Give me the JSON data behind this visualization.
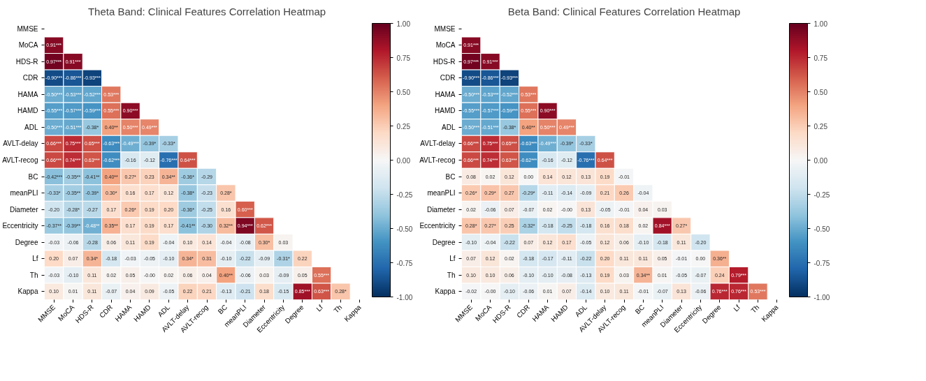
{
  "chart_data": [
    {
      "type": "heatmap",
      "title": "Theta Band: Clinical Features Correlation Heatmap",
      "categories": [
        "MMSE",
        "MoCA",
        "HDS-R",
        "CDR",
        "HAMA",
        "HAMD",
        "ADL",
        "AVLT-delay",
        "AVLT-recog",
        "BC",
        "meanPLI",
        "Diameter",
        "Eccentricity",
        "Degree",
        "Lf",
        "Th",
        "Kappa"
      ],
      "y_categories": [
        "MMSE",
        "MoCA",
        "HDS-R",
        "CDR",
        "HAMA",
        "HAMD",
        "ADL",
        "AVLT-delay",
        "AVLT-recog",
        "BC",
        "meanPLI",
        "Diameter",
        "Eccentricity",
        "Degree",
        "Lf",
        "Th",
        "Kappa"
      ],
      "cells": [
        [
          null,
          null,
          null,
          null,
          null,
          null,
          null,
          null,
          null,
          null,
          null,
          null,
          null,
          null,
          null,
          null,
          null
        ],
        [
          0.91,
          null,
          null,
          null,
          null,
          null,
          null,
          null,
          null,
          null,
          null,
          null,
          null,
          null,
          null,
          null,
          null
        ],
        [
          0.97,
          0.91,
          null,
          null,
          null,
          null,
          null,
          null,
          null,
          null,
          null,
          null,
          null,
          null,
          null,
          null,
          null
        ],
        [
          -0.9,
          -0.86,
          -0.93,
          null,
          null,
          null,
          null,
          null,
          null,
          null,
          null,
          null,
          null,
          null,
          null,
          null,
          null
        ],
        [
          -0.5,
          -0.53,
          -0.52,
          0.53,
          null,
          null,
          null,
          null,
          null,
          null,
          null,
          null,
          null,
          null,
          null,
          null,
          null
        ],
        [
          -0.55,
          -0.57,
          -0.59,
          0.55,
          0.9,
          null,
          null,
          null,
          null,
          null,
          null,
          null,
          null,
          null,
          null,
          null,
          null
        ],
        [
          -0.5,
          -0.51,
          -0.38,
          0.4,
          0.5,
          0.49,
          null,
          null,
          null,
          null,
          null,
          null,
          null,
          null,
          null,
          null,
          null
        ],
        [
          0.66,
          0.75,
          0.65,
          -0.63,
          -0.49,
          -0.39,
          -0.33,
          null,
          null,
          null,
          null,
          null,
          null,
          null,
          null,
          null,
          null
        ],
        [
          0.66,
          0.74,
          0.63,
          -0.62,
          -0.16,
          -0.12,
          -0.76,
          0.64,
          null,
          null,
          null,
          null,
          null,
          null,
          null,
          null,
          null
        ],
        [
          -0.42,
          -0.35,
          -0.41,
          0.4,
          0.27,
          0.23,
          0.34,
          -0.36,
          -0.29,
          null,
          null,
          null,
          null,
          null,
          null,
          null,
          null
        ],
        [
          -0.33,
          -0.35,
          -0.39,
          0.3,
          0.16,
          0.17,
          0.12,
          -0.38,
          -0.23,
          0.28,
          null,
          null,
          null,
          null,
          null,
          null,
          null
        ],
        [
          -0.2,
          -0.28,
          -0.27,
          0.17,
          0.26,
          0.19,
          0.2,
          -0.36,
          -0.25,
          0.16,
          0.6,
          null,
          null,
          null,
          null,
          null,
          null
        ],
        [
          -0.37,
          -0.39,
          -0.48,
          0.35,
          0.17,
          0.19,
          0.17,
          -0.41,
          -0.3,
          0.32,
          0.94,
          0.62,
          null,
          null,
          null,
          null,
          null
        ],
        [
          -0.03,
          -0.06,
          -0.28,
          0.06,
          0.11,
          0.19,
          -0.04,
          0.1,
          0.14,
          -0.04,
          -0.08,
          0.3,
          0.03,
          null,
          null,
          null,
          null
        ],
        [
          0.2,
          0.07,
          0.34,
          -0.18,
          -0.03,
          -0.05,
          -0.1,
          0.34,
          0.31,
          -0.1,
          -0.22,
          -0.09,
          -0.31,
          0.22,
          null,
          null,
          null
        ],
        [
          -0.03,
          -0.1,
          0.11,
          0.02,
          0.05,
          0,
          0.02,
          0.06,
          0.04,
          0.4,
          -0.06,
          0.03,
          -0.09,
          0.05,
          0.55,
          null,
          null
        ],
        [
          0.1,
          0.01,
          0.11,
          -0.07,
          0.04,
          0.09,
          -0.05,
          0.22,
          0.21,
          -0.13,
          -0.21,
          0.18,
          -0.15,
          0.85,
          0.63,
          0.28,
          null
        ]
      ],
      "cell_labels": [
        [
          null,
          null,
          null,
          null,
          null,
          null,
          null,
          null,
          null,
          null,
          null,
          null,
          null,
          null,
          null,
          null,
          null
        ],
        [
          "0.91***",
          null,
          null,
          null,
          null,
          null,
          null,
          null,
          null,
          null,
          null,
          null,
          null,
          null,
          null,
          null,
          null
        ],
        [
          "0.97***",
          "0.91***",
          null,
          null,
          null,
          null,
          null,
          null,
          null,
          null,
          null,
          null,
          null,
          null,
          null,
          null,
          null
        ],
        [
          "-0.90***",
          "-0.86***",
          "-0.93***",
          null,
          null,
          null,
          null,
          null,
          null,
          null,
          null,
          null,
          null,
          null,
          null,
          null,
          null
        ],
        [
          "-0.50***",
          "-0.53***",
          "-0.52***",
          "0.53***",
          null,
          null,
          null,
          null,
          null,
          null,
          null,
          null,
          null,
          null,
          null,
          null,
          null
        ],
        [
          "-0.55***",
          "-0.57***",
          "-0.59***",
          "0.55***",
          "0.90***",
          null,
          null,
          null,
          null,
          null,
          null,
          null,
          null,
          null,
          null,
          null,
          null
        ],
        [
          "-0.50***",
          "-0.51***",
          "-0.38*",
          "0.40**",
          "0.50***",
          "0.49***",
          null,
          null,
          null,
          null,
          null,
          null,
          null,
          null,
          null,
          null,
          null
        ],
        [
          "0.66***",
          "0.75***",
          "0.65***",
          "-0.63***",
          "-0.49***",
          "-0.39*",
          "-0.33*",
          null,
          null,
          null,
          null,
          null,
          null,
          null,
          null,
          null,
          null
        ],
        [
          "0.66***",
          "0.74***",
          "0.63***",
          "-0.62***",
          "-0.16",
          "-0.12",
          "-0.76***",
          "0.64***",
          null,
          null,
          null,
          null,
          null,
          null,
          null,
          null,
          null
        ],
        [
          "-0.42***",
          "-0.35**",
          "-0.41**",
          "0.40**",
          "0.27*",
          "0.23",
          "0.34**",
          "-0.36*",
          "-0.29",
          null,
          null,
          null,
          null,
          null,
          null,
          null,
          null
        ],
        [
          "-0.33*",
          "-0.35**",
          "-0.39*",
          "0.30*",
          "0.16",
          "0.17",
          "0.12",
          "-0.38*",
          "-0.23",
          "0.28*",
          null,
          null,
          null,
          null,
          null,
          null,
          null
        ],
        [
          "-0.20",
          "-0.28*",
          "-0.27",
          "0.17",
          "0.26*",
          "0.19",
          "0.20",
          "-0.36*",
          "-0.25",
          "0.16",
          "0.60***",
          null,
          null,
          null,
          null,
          null,
          null
        ],
        [
          "-0.37**",
          "-0.39**",
          "-0.48**",
          "0.35**",
          "0.17",
          "0.19",
          "0.17",
          "-0.41**",
          "-0.30",
          "0.32**",
          "0.94***",
          "0.62***",
          null,
          null,
          null,
          null,
          null
        ],
        [
          "-0.03",
          "-0.06",
          "-0.28",
          "0.06",
          "0.11",
          "0.19",
          "-0.04",
          "0.10",
          "0.14",
          "-0.04",
          "-0.08",
          "0.30*",
          "0.03",
          null,
          null,
          null,
          null
        ],
        [
          "0.20",
          "0.07",
          "0.34*",
          "-0.18",
          "-0.03",
          "-0.05",
          "-0.10",
          "0.34*",
          "0.31",
          "-0.10",
          "-0.22",
          "-0.09",
          "-0.31*",
          "0.22",
          null,
          null,
          null
        ],
        [
          "-0.03",
          "-0.10",
          "0.11",
          "0.02",
          "0.05",
          "-0.00",
          "0.02",
          "0.06",
          "0.04",
          "0.40**",
          "-0.06",
          "0.03",
          "-0.09",
          "0.05",
          "0.55***",
          null,
          null
        ],
        [
          "0.10",
          "0.01",
          "0.11",
          "-0.07",
          "0.04",
          "0.09",
          "-0.05",
          "0.22",
          "0.21",
          "-0.13",
          "-0.21",
          "0.18",
          "-0.15",
          "0.85***",
          "0.63***",
          "0.28*",
          null
        ]
      ],
      "clim": [
        -1,
        1
      ],
      "cticks": [
        {
          "value": -1,
          "label": "-1.00"
        },
        {
          "value": -0.75,
          "label": "-0.75"
        },
        {
          "value": -0.5,
          "label": "-0.50"
        },
        {
          "value": -0.25,
          "label": "-0.25"
        },
        {
          "value": 0,
          "label": "0.00"
        },
        {
          "value": 0.25,
          "label": "0.25"
        },
        {
          "value": 0.5,
          "label": "0.50"
        },
        {
          "value": 0.75,
          "label": "0.75"
        },
        {
          "value": 1,
          "label": "1.00"
        }
      ]
    },
    {
      "type": "heatmap",
      "title": "Beta Band: Clinical Features Correlation Heatmap",
      "categories": [
        "MMSE",
        "MoCA",
        "HDS-R",
        "CDR",
        "HAMA",
        "HAMD",
        "ADL",
        "AVLT-delay",
        "AVLT-recog",
        "BC",
        "meanPLI",
        "Diameter",
        "Eccentricity",
        "Degree",
        "Lf",
        "Th",
        "Kappa"
      ],
      "y_categories": [
        "MMSE",
        "MoCA",
        "HDS-R",
        "CDR",
        "HAMA",
        "HAMD",
        "ADL",
        "AVLT-delay",
        "AVLT-recog",
        "BC",
        "meanPLI",
        "Diameter",
        "Eccentricity",
        "Degree",
        "Lf",
        "Th",
        "Kappa"
      ],
      "cells": [
        [
          null,
          null,
          null,
          null,
          null,
          null,
          null,
          null,
          null,
          null,
          null,
          null,
          null,
          null,
          null,
          null,
          null
        ],
        [
          0.91,
          null,
          null,
          null,
          null,
          null,
          null,
          null,
          null,
          null,
          null,
          null,
          null,
          null,
          null,
          null,
          null
        ],
        [
          0.97,
          0.91,
          null,
          null,
          null,
          null,
          null,
          null,
          null,
          null,
          null,
          null,
          null,
          null,
          null,
          null,
          null
        ],
        [
          -0.9,
          -0.86,
          -0.93,
          null,
          null,
          null,
          null,
          null,
          null,
          null,
          null,
          null,
          null,
          null,
          null,
          null,
          null
        ],
        [
          -0.5,
          -0.53,
          -0.52,
          0.53,
          null,
          null,
          null,
          null,
          null,
          null,
          null,
          null,
          null,
          null,
          null,
          null,
          null
        ],
        [
          -0.55,
          -0.57,
          -0.59,
          0.55,
          0.9,
          null,
          null,
          null,
          null,
          null,
          null,
          null,
          null,
          null,
          null,
          null,
          null
        ],
        [
          -0.5,
          -0.51,
          -0.38,
          0.4,
          0.5,
          0.49,
          null,
          null,
          null,
          null,
          null,
          null,
          null,
          null,
          null,
          null,
          null
        ],
        [
          0.66,
          0.75,
          0.65,
          -0.63,
          -0.49,
          -0.39,
          -0.33,
          null,
          null,
          null,
          null,
          null,
          null,
          null,
          null,
          null,
          null
        ],
        [
          0.66,
          0.74,
          0.63,
          -0.62,
          -0.16,
          -0.12,
          -0.76,
          0.64,
          null,
          null,
          null,
          null,
          null,
          null,
          null,
          null,
          null
        ],
        [
          0.08,
          0.02,
          0.12,
          0.0,
          0.14,
          0.12,
          0.13,
          0.19,
          -0.01,
          null,
          null,
          null,
          null,
          null,
          null,
          null,
          null
        ],
        [
          0.26,
          0.29,
          0.27,
          -0.29,
          -0.11,
          -0.14,
          -0.09,
          0.21,
          0.26,
          -0.04,
          null,
          null,
          null,
          null,
          null,
          null,
          null
        ],
        [
          0.02,
          -0.06,
          0.07,
          -0.07,
          0.02,
          0,
          0.13,
          -0.05,
          -0.01,
          0.04,
          0.03,
          null,
          null,
          null,
          null,
          null,
          null
        ],
        [
          0.28,
          0.27,
          0.25,
          -0.32,
          -0.18,
          -0.25,
          -0.18,
          0.16,
          0.18,
          0.02,
          0.84,
          0.27,
          null,
          null,
          null,
          null,
          null
        ],
        [
          -0.1,
          -0.04,
          -0.22,
          0.07,
          0.12,
          0.17,
          -0.05,
          0.12,
          0.06,
          -0.1,
          -0.18,
          0.11,
          -0.2,
          null,
          null,
          null,
          null
        ],
        [
          0.07,
          0.12,
          0.02,
          -0.18,
          -0.17,
          -0.11,
          -0.22,
          0.2,
          0.11,
          0.11,
          0.05,
          -0.01,
          0.0,
          0.36,
          null,
          null,
          null
        ],
        [
          0.1,
          0.1,
          0.06,
          -0.1,
          -0.1,
          -0.08,
          -0.13,
          0.19,
          0.03,
          0.34,
          0.01,
          -0.05,
          -0.07,
          0.24,
          0.79,
          null,
          null
        ],
        [
          -0.02,
          0,
          -0.1,
          -0.06,
          0.01,
          0.07,
          -0.14,
          0.1,
          0.11,
          -0.01,
          -0.07,
          0.13,
          -0.06,
          0.76,
          0.76,
          0.53,
          null
        ]
      ],
      "cell_labels": [
        [
          null,
          null,
          null,
          null,
          null,
          null,
          null,
          null,
          null,
          null,
          null,
          null,
          null,
          null,
          null,
          null,
          null
        ],
        [
          "0.91***",
          null,
          null,
          null,
          null,
          null,
          null,
          null,
          null,
          null,
          null,
          null,
          null,
          null,
          null,
          null,
          null
        ],
        [
          "0.97***",
          "0.91***",
          null,
          null,
          null,
          null,
          null,
          null,
          null,
          null,
          null,
          null,
          null,
          null,
          null,
          null,
          null
        ],
        [
          "-0.90***",
          "-0.86***",
          "-0.93***",
          null,
          null,
          null,
          null,
          null,
          null,
          null,
          null,
          null,
          null,
          null,
          null,
          null,
          null
        ],
        [
          "-0.50***",
          "-0.53***",
          "-0.52***",
          "0.53***",
          null,
          null,
          null,
          null,
          null,
          null,
          null,
          null,
          null,
          null,
          null,
          null,
          null
        ],
        [
          "-0.55***",
          "-0.57***",
          "-0.59***",
          "0.55***",
          "0.90***",
          null,
          null,
          null,
          null,
          null,
          null,
          null,
          null,
          null,
          null,
          null,
          null
        ],
        [
          "-0.50***",
          "-0.51***",
          "-0.38*",
          "0.40**",
          "0.50***",
          "0.49***",
          null,
          null,
          null,
          null,
          null,
          null,
          null,
          null,
          null,
          null,
          null
        ],
        [
          "0.66***",
          "0.75***",
          "0.65***",
          "-0.63***",
          "-0.49***",
          "-0.39*",
          "-0.33*",
          null,
          null,
          null,
          null,
          null,
          null,
          null,
          null,
          null,
          null
        ],
        [
          "0.66***",
          "0.74***",
          "0.63***",
          "-0.62***",
          "-0.16",
          "-0.12",
          "-0.76***",
          "0.64***",
          null,
          null,
          null,
          null,
          null,
          null,
          null,
          null,
          null
        ],
        [
          "0.08",
          "0.02",
          "0.12",
          "0.00",
          "0.14",
          "0.12",
          "0.13",
          "0.19",
          "-0.01",
          null,
          null,
          null,
          null,
          null,
          null,
          null,
          null
        ],
        [
          "0.26*",
          "0.29*",
          "0.27",
          "-0.29*",
          "-0.11",
          "-0.14",
          "-0.09",
          "0.21",
          "0.26",
          "-0.04",
          null,
          null,
          null,
          null,
          null,
          null,
          null
        ],
        [
          "0.02",
          "-0.06",
          "0.07",
          "-0.07",
          "0.02",
          "-0.00",
          "0.13",
          "-0.05",
          "-0.01",
          "0.04",
          "0.03",
          null,
          null,
          null,
          null,
          null,
          null
        ],
        [
          "0.28*",
          "0.27*",
          "0.25",
          "-0.32*",
          "-0.18",
          "-0.25",
          "-0.18",
          "0.16",
          "0.18",
          "0.02",
          "0.84***",
          "0.27*",
          null,
          null,
          null,
          null,
          null
        ],
        [
          "-0.10",
          "-0.04",
          "-0.22",
          "0.07",
          "0.12",
          "0.17",
          "-0.05",
          "0.12",
          "0.06",
          "-0.10",
          "-0.18",
          "0.11",
          "-0.20",
          null,
          null,
          null,
          null
        ],
        [
          "0.07",
          "0.12",
          "0.02",
          "-0.18",
          "-0.17",
          "-0.11",
          "-0.22",
          "0.20",
          "0.11",
          "0.11",
          "0.05",
          "-0.01",
          "0.00",
          "0.36**",
          null,
          null,
          null
        ],
        [
          "0.10",
          "0.10",
          "0.06",
          "-0.10",
          "-0.10",
          "-0.08",
          "-0.13",
          "0.19",
          "0.03",
          "0.34**",
          "0.01",
          "-0.05",
          "-0.07",
          "0.24",
          "0.79***",
          null,
          null
        ],
        [
          "-0.02",
          "-0.00",
          "-0.10",
          "-0.06",
          "0.01",
          "0.07",
          "-0.14",
          "0.10",
          "0.11",
          "-0.01",
          "-0.07",
          "0.13",
          "-0.06",
          "0.76***",
          "0.76***",
          "0.53***",
          null
        ]
      ],
      "clim": [
        -1,
        1
      ],
      "cticks": [
        {
          "value": -1,
          "label": "-1.00"
        },
        {
          "value": -0.75,
          "label": "-0.75"
        },
        {
          "value": -0.5,
          "label": "-0.50"
        },
        {
          "value": -0.25,
          "label": "-0.25"
        },
        {
          "value": 0,
          "label": "0.00"
        },
        {
          "value": 0.25,
          "label": "0.25"
        },
        {
          "value": 0.5,
          "label": "0.50"
        },
        {
          "value": 0.75,
          "label": "0.75"
        },
        {
          "value": 1,
          "label": "1.00"
        }
      ]
    }
  ]
}
